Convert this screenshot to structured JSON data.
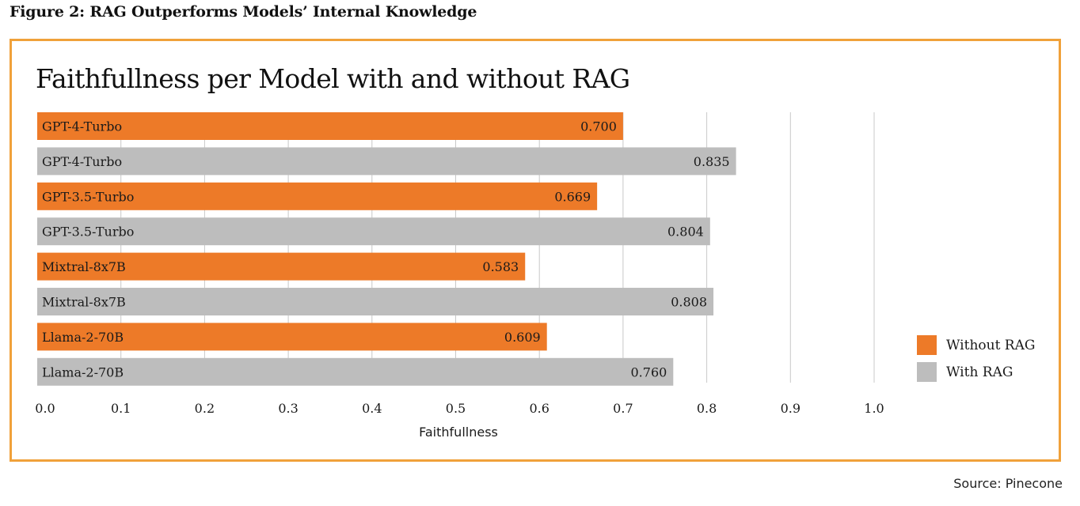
{
  "figure_title": "Figure 2: RAG Outperforms Models’ Internal Knowledge",
  "source": "Source: Pinecone",
  "colors": {
    "without_rag": "#ed7a28",
    "with_rag": "#bdbdbd",
    "frame": "#f0a13a",
    "grid": "#c8c8c8"
  },
  "chart_data": {
    "type": "bar",
    "orientation": "horizontal",
    "title": "Faithfullness per Model with and without RAG",
    "xlabel": "Faithfullness",
    "ylabel": "",
    "xlim": [
      0.0,
      1.0
    ],
    "xticks": [
      "0.0",
      "0.1",
      "0.2",
      "0.3",
      "0.4",
      "0.5",
      "0.6",
      "0.7",
      "0.8",
      "0.9",
      "1.0"
    ],
    "grid": "vertical",
    "legend_position": "right",
    "bars": [
      {
        "label": "GPT-4-Turbo",
        "series": "Without RAG",
        "value": 0.7,
        "value_label": "0.700"
      },
      {
        "label": "GPT-4-Turbo",
        "series": "With RAG",
        "value": 0.835,
        "value_label": "0.835"
      },
      {
        "label": "GPT-3.5-Turbo",
        "series": "Without RAG",
        "value": 0.669,
        "value_label": "0.669"
      },
      {
        "label": "GPT-3.5-Turbo",
        "series": "With RAG",
        "value": 0.804,
        "value_label": "0.804"
      },
      {
        "label": "Mixtral-8x7B",
        "series": "Without RAG",
        "value": 0.583,
        "value_label": "0.583"
      },
      {
        "label": "Mixtral-8x7B",
        "series": "With RAG",
        "value": 0.808,
        "value_label": "0.808"
      },
      {
        "label": "Llama-2-70B",
        "series": "Without RAG",
        "value": 0.609,
        "value_label": "0.609"
      },
      {
        "label": "Llama-2-70B",
        "series": "With RAG",
        "value": 0.76,
        "value_label": "0.760"
      }
    ],
    "legend": [
      {
        "name": "Without RAG",
        "color_key": "without_rag"
      },
      {
        "name": "With RAG",
        "color_key": "with_rag"
      }
    ]
  }
}
